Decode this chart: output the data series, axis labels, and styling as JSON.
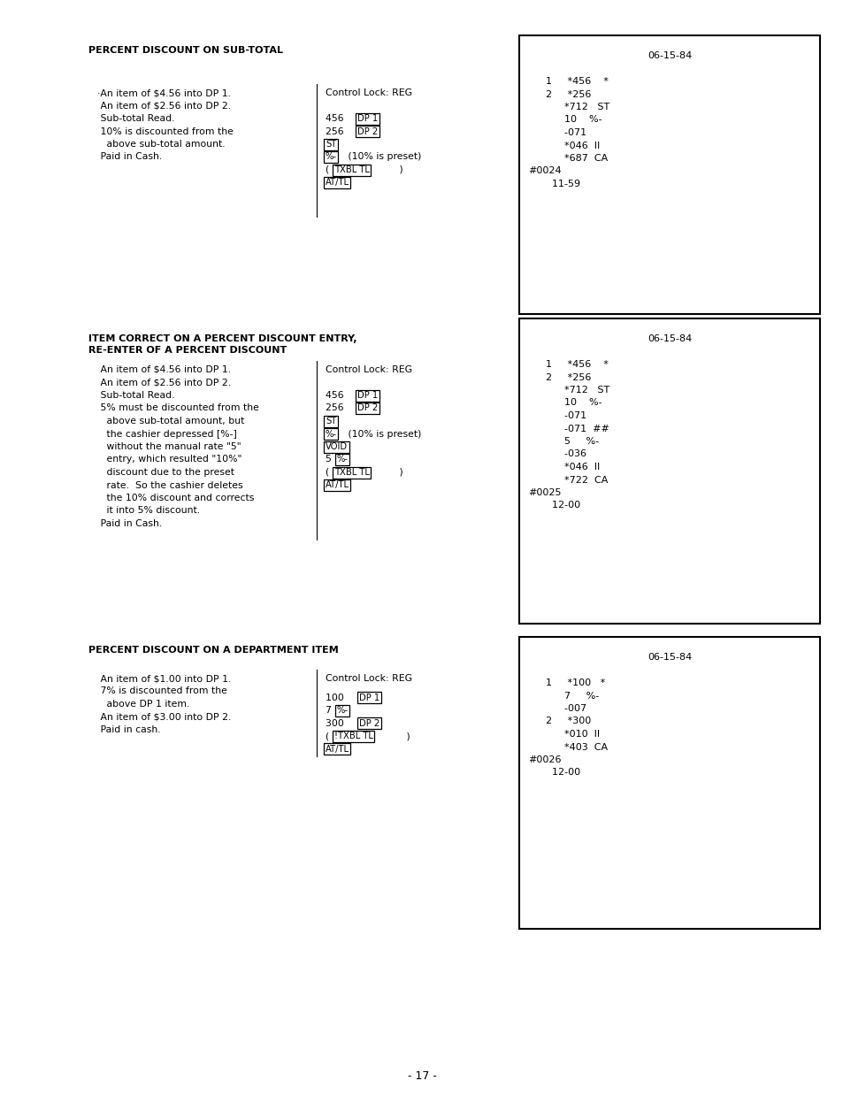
{
  "bg_color": "#ffffff",
  "page_number": "- 17 -",
  "title1": "PERCENT DISCOUNT ON SUB-TOTAL",
  "title2_line1": "ITEM CORRECT ON A PERCENT DISCOUNT ENTRY,",
  "title2_line2": "RE-ENTER OF A PERCENT DISCOUNT",
  "title3": "PERCENT DISCOUNT ON A DEPARTMENT ITEM",
  "left1": [
    "·An item of $4.56 into DP 1.",
    " An item of $2.56 into DP 2.",
    " Sub-total Read.",
    " 10% is discounted from the",
    "   above sub-total amount.",
    " Paid in Cash."
  ],
  "left2": [
    " An item of $4.56 into DP 1.",
    " An item of $2.56 into DP 2.",
    " Sub-total Read.",
    " 5% must be discounted from the",
    "   above sub-total amount, but",
    "   the cashier depressed [%-]",
    "   without the manual rate \"5\"",
    "   entry, which resulted \"10%\"",
    "   discount due to the preset",
    "   rate.  So the cashier deletes",
    "   the 10% discount and corrects",
    "   it into 5% discount.",
    " Paid in Cash."
  ],
  "left3": [
    " An item of $1.00 into DP 1.",
    " 7% is discounted from the",
    "   above DP 1 item.",
    " An item of $3.00 into DP 2.",
    " Paid in cash."
  ],
  "receipt1_lines": [
    [
      "06-15-84",
      "center"
    ],
    [
      "",
      ""
    ],
    [
      "1     *456    *",
      "left_indent"
    ],
    [
      "2     *256",
      "left_indent"
    ],
    [
      "      *712   ST",
      "left_indent"
    ],
    [
      "      10    %-",
      "left_indent"
    ],
    [
      "      -071",
      "left_indent"
    ],
    [
      "      *046  II",
      "left_indent"
    ],
    [
      "      *687  CA",
      "left_indent"
    ],
    [
      "#0024",
      "left_far"
    ],
    [
      "  11-59",
      "left_indent"
    ]
  ],
  "receipt2_lines": [
    [
      "06-15-84",
      "center"
    ],
    [
      "",
      ""
    ],
    [
      "1     *456    *",
      "left_indent"
    ],
    [
      "2     *256",
      "left_indent"
    ],
    [
      "      *712   ST",
      "left_indent"
    ],
    [
      "      10    %-",
      "left_indent"
    ],
    [
      "      -071",
      "left_indent"
    ],
    [
      "      -071  ##",
      "left_indent"
    ],
    [
      "      5     %-",
      "left_indent"
    ],
    [
      "      -036",
      "left_indent"
    ],
    [
      "      *046  II",
      "left_indent"
    ],
    [
      "      *722  CA",
      "left_indent"
    ],
    [
      "#0025",
      "left_far"
    ],
    [
      "  12-00",
      "left_indent"
    ]
  ],
  "receipt3_lines": [
    [
      "06-15-84",
      "center"
    ],
    [
      "",
      ""
    ],
    [
      "1     *100   *",
      "left_indent"
    ],
    [
      "      7     %-",
      "left_indent"
    ],
    [
      "      -007",
      "left_indent"
    ],
    [
      "2     *300",
      "left_indent"
    ],
    [
      "      *010  II",
      "left_indent"
    ],
    [
      "      *403  CA",
      "left_indent"
    ],
    [
      "#0026",
      "left_far"
    ],
    [
      "  12-00",
      "left_indent"
    ]
  ]
}
